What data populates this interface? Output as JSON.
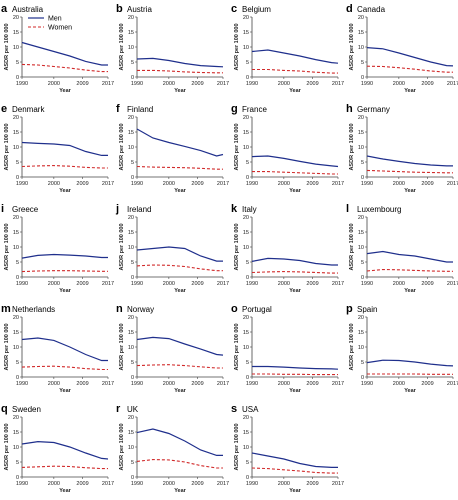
{
  "chart_data": {
    "type": "line",
    "ylabel": "ASDR per 100 000",
    "xlabel": "Year",
    "xlim": [
      1990,
      2017
    ],
    "ylim": [
      0,
      20
    ],
    "xticks": [
      1990,
      2000,
      2009,
      2017
    ],
    "yticks": [
      0,
      5,
      10,
      15,
      20
    ],
    "legend": {
      "placement": "top-left of first panel",
      "entries": [
        {
          "name": "Men",
          "color": "#1f2f8c",
          "style": "solid"
        },
        {
          "name": "Women",
          "color": "#d12a2a",
          "style": "dashed"
        }
      ]
    },
    "x": [
      1990,
      1995,
      2000,
      2005,
      2010,
      2015,
      2017
    ],
    "panels": [
      {
        "letter": "a",
        "title": "Australia",
        "men": [
          11.5,
          10,
          8.5,
          7,
          5.2,
          4,
          4
        ],
        "women": [
          4.2,
          4,
          3.5,
          3,
          2.3,
          1.8,
          1.8
        ]
      },
      {
        "letter": "b",
        "title": "Austria",
        "men": [
          6,
          6.2,
          5.5,
          4.5,
          3.8,
          3.5,
          3.4
        ],
        "women": [
          2.2,
          2.2,
          2,
          1.7,
          1.5,
          1.4,
          1.4
        ]
      },
      {
        "letter": "c",
        "title": "Belgium",
        "men": [
          8.5,
          9,
          8,
          7,
          5.8,
          4.8,
          4.6
        ],
        "women": [
          2.5,
          2.5,
          2.2,
          2,
          1.6,
          1.3,
          1.3
        ]
      },
      {
        "letter": "d",
        "title": "Canada",
        "men": [
          9.8,
          9.4,
          8,
          6.5,
          5,
          3.8,
          3.7
        ],
        "women": [
          3.6,
          3.5,
          3.1,
          2.6,
          2,
          1.6,
          1.6
        ]
      },
      {
        "letter": "e",
        "title": "Denmark",
        "men": [
          11.5,
          11.2,
          11,
          10.5,
          8.5,
          7.2,
          7.2
        ],
        "women": [
          3.5,
          3.7,
          3.8,
          3.6,
          3.2,
          3,
          3
        ]
      },
      {
        "letter": "f",
        "title": "Finland",
        "men": [
          16,
          13,
          11.5,
          10.2,
          8.8,
          7,
          7.5
        ],
        "women": [
          3.5,
          3.3,
          3.2,
          3.1,
          2.9,
          2.6,
          2.6
        ]
      },
      {
        "letter": "g",
        "title": "France",
        "men": [
          6.8,
          7,
          6.2,
          5.2,
          4.3,
          3.7,
          3.5
        ],
        "women": [
          1.8,
          1.8,
          1.6,
          1.4,
          1.2,
          1,
          1
        ]
      },
      {
        "letter": "h",
        "title": "Germany",
        "men": [
          7,
          6,
          5.2,
          4.5,
          4,
          3.7,
          3.7
        ],
        "women": [
          2.2,
          2,
          1.8,
          1.6,
          1.5,
          1.4,
          1.4
        ]
      },
      {
        "letter": "i",
        "title": "Greece",
        "men": [
          6.3,
          7.2,
          7.5,
          7.3,
          7,
          6.5,
          6.5
        ],
        "women": [
          1.8,
          2,
          2.1,
          2.1,
          2,
          1.9,
          1.9
        ]
      },
      {
        "letter": "j",
        "title": "Ireland",
        "men": [
          9,
          9.5,
          10,
          9.5,
          7,
          5.3,
          5.3
        ],
        "women": [
          3.7,
          4,
          3.9,
          3.5,
          2.7,
          2.1,
          2.1
        ]
      },
      {
        "letter": "k",
        "title": "Italy",
        "men": [
          5.2,
          6.2,
          6,
          5.5,
          4.5,
          4,
          4
        ],
        "women": [
          1.5,
          1.7,
          1.8,
          1.7,
          1.5,
          1.3,
          1.3
        ]
      },
      {
        "letter": "l",
        "title": "Luxembourg",
        "men": [
          7.8,
          8.5,
          7.5,
          7,
          6,
          5,
          5
        ],
        "women": [
          2,
          2.5,
          2.4,
          2.2,
          2,
          1.9,
          1.9
        ]
      },
      {
        "letter": "m",
        "title": "Netherlands",
        "men": [
          12.5,
          13,
          12.2,
          10,
          7.5,
          5.5,
          5.5
        ],
        "women": [
          3.3,
          3.5,
          3.6,
          3.3,
          2.8,
          2.5,
          2.5
        ]
      },
      {
        "letter": "n",
        "title": "Norway",
        "men": [
          12.5,
          13.2,
          12.8,
          11,
          9.3,
          7.5,
          7.3
        ],
        "women": [
          3.8,
          4,
          4.1,
          3.8,
          3.4,
          3,
          3
        ]
      },
      {
        "letter": "o",
        "title": "Portugal",
        "men": [
          3.5,
          3.5,
          3.3,
          3,
          2.8,
          2.7,
          2.6
        ],
        "women": [
          1,
          1,
          0.9,
          0.9,
          0.8,
          0.8,
          0.8
        ]
      },
      {
        "letter": "p",
        "title": "Spain",
        "men": [
          4.8,
          5.6,
          5.5,
          5,
          4.3,
          3.8,
          3.7
        ],
        "women": [
          1,
          1,
          1,
          1,
          0.9,
          0.9,
          0.9
        ]
      },
      {
        "letter": "q",
        "title": "Sweden",
        "men": [
          11,
          11.8,
          11.5,
          10,
          8,
          6.2,
          6
        ],
        "women": [
          3.2,
          3.4,
          3.6,
          3.5,
          3.1,
          2.8,
          2.8
        ]
      },
      {
        "letter": "r",
        "title": "UK",
        "men": [
          14.8,
          16,
          14.5,
          12,
          9,
          7.2,
          7.2
        ],
        "women": [
          5.2,
          5.8,
          5.7,
          5,
          3.8,
          3,
          3
        ]
      },
      {
        "letter": "s",
        "title": "USA",
        "men": [
          8,
          7,
          6,
          4.5,
          3.5,
          3.2,
          3.2
        ],
        "women": [
          3,
          2.8,
          2.4,
          2,
          1.5,
          1.3,
          1.3
        ]
      }
    ]
  }
}
